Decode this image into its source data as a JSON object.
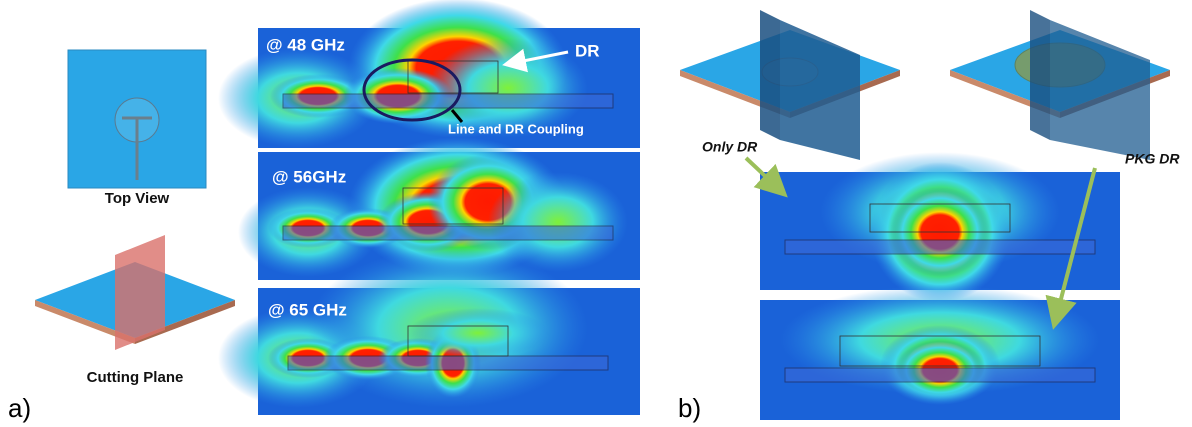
{
  "panel_a": {
    "label": "a)",
    "top_view": "Top View",
    "cutting_plane": "Cutting Plane",
    "fields": [
      {
        "freq": "@ 48 GHz",
        "dr_label": "DR",
        "coupling_label": "Line and DR Coupling"
      },
      {
        "freq": "@ 56GHz"
      },
      {
        "freq": "@ 65 GHz"
      }
    ]
  },
  "panel_b": {
    "label": "b)",
    "only_dr": "Only DR",
    "pkg_dr": "PKG DR"
  }
}
